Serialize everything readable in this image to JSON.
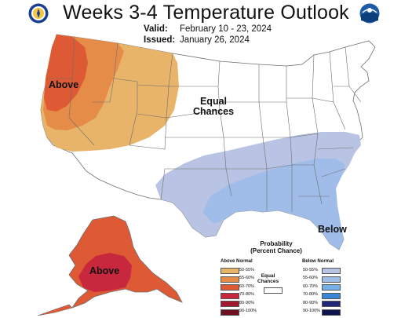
{
  "title": "Weeks 3-4 Temperature Outlook",
  "valid_label": "Valid:",
  "valid_value": "February 10 - 23, 2024",
  "issued_label": "Issued:",
  "issued_value": "January 26, 2024",
  "logos": {
    "left": "noaa-department-of-commerce-seal-icon",
    "right": "noaa-logo-icon"
  },
  "map_labels": {
    "above_conus": "Above",
    "equal": [
      "Equal",
      "Chances"
    ],
    "below": "Below",
    "above_alaska": "Above"
  },
  "legend": {
    "title": [
      "Probability",
      "(Percent Chance)"
    ],
    "above_header": "Above Normal",
    "below_header": "Below Normal",
    "equal_label": [
      "Equal",
      "Chances"
    ],
    "above": [
      {
        "label": "50-55%",
        "color": "#e8b46a"
      },
      {
        "label": "55-60%",
        "color": "#e58c48"
      },
      {
        "label": "60-70%",
        "color": "#dd5a35"
      },
      {
        "label": "70-80%",
        "color": "#c8283e"
      },
      {
        "label": "80-90%",
        "color": "#a31932"
      },
      {
        "label": "90-100%",
        "color": "#6d1020"
      }
    ],
    "below": [
      {
        "label": "50-55%",
        "color": "#b9c3e3"
      },
      {
        "label": "55-60%",
        "color": "#9fbde8"
      },
      {
        "label": "60-70%",
        "color": "#76aee6"
      },
      {
        "label": "70-80%",
        "color": "#3a86d6"
      },
      {
        "label": "80-90%",
        "color": "#22267a"
      },
      {
        "label": "90-100%",
        "color": "#0f1450"
      }
    ]
  },
  "colors": {
    "above_50_55": "#e8b46a",
    "above_55_60": "#e58c48",
    "above_60_70": "#dd5a35",
    "above_70_80": "#c8283e",
    "below_50_55": "#b9c3e3",
    "below_55_60": "#9fbde8",
    "below_60_70": "#76aee6",
    "state_border": "#6e6e6e"
  }
}
